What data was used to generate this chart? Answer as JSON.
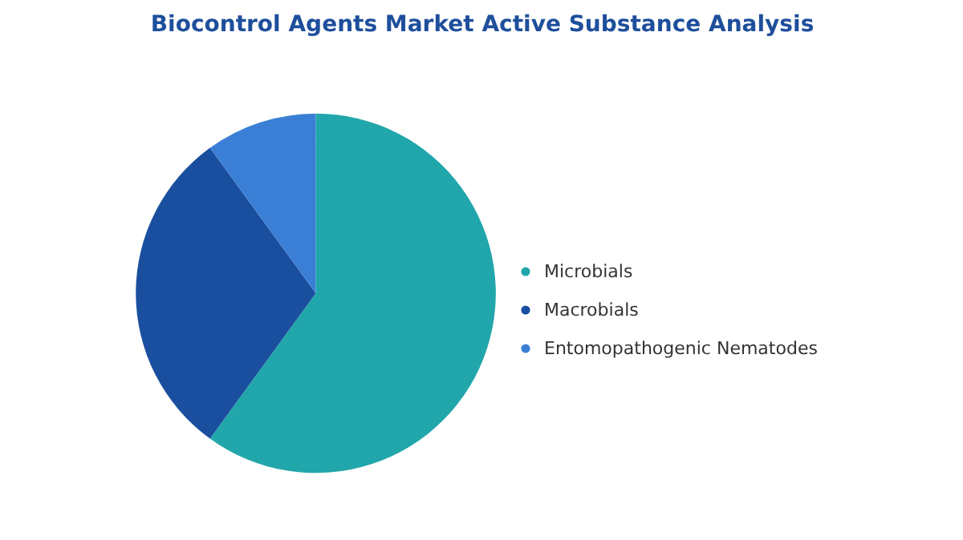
{
  "chart_data": {
    "type": "pie",
    "title": "Biocontrol Agents Market Active Substance Analysis",
    "categories": [
      "Microbials",
      "Macrobials",
      "Entomopathogenic Nematodes"
    ],
    "values": [
      60,
      30,
      10
    ],
    "colors": [
      "#21a6ab",
      "#1a4f9f",
      "#3a7fd5"
    ],
    "legend": "right"
  }
}
